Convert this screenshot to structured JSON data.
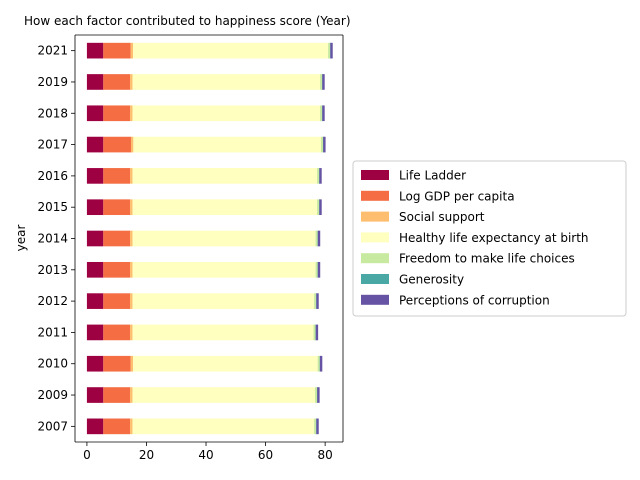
{
  "chart_data": {
    "type": "bar",
    "orientation": "horizontal",
    "stacked": true,
    "title": "How each factor contributed to happiness score (Year)",
    "xlabel": "",
    "ylabel": "year",
    "xlim": [
      -4,
      86
    ],
    "xticks": [
      0,
      20,
      40,
      60,
      80
    ],
    "categories": [
      "2007",
      "2009",
      "2010",
      "2011",
      "2012",
      "2013",
      "2014",
      "2015",
      "2016",
      "2017",
      "2018",
      "2019",
      "2021"
    ],
    "legend_position": "center-right outside",
    "grid": false,
    "series": [
      {
        "name": "Life Ladder",
        "color": "#9e0142",
        "values": [
          5.5,
          5.5,
          5.5,
          5.5,
          5.5,
          5.5,
          5.5,
          5.5,
          5.5,
          5.5,
          5.5,
          5.5,
          5.5
        ]
      },
      {
        "name": "Log GDP per capita",
        "color": "#f46d43",
        "values": [
          9.0,
          9.0,
          9.2,
          9.0,
          9.0,
          9.0,
          9.0,
          9.0,
          9.0,
          9.3,
          9.0,
          9.0,
          9.2
        ]
      },
      {
        "name": "Social support",
        "color": "#fdbf6f",
        "values": [
          0.8,
          0.8,
          0.8,
          0.8,
          0.8,
          0.8,
          0.8,
          0.8,
          0.8,
          0.8,
          0.8,
          0.8,
          0.8
        ]
      },
      {
        "name": "Healthy life expectancy at birth",
        "color": "#ffffbf",
        "values": [
          61.0,
          61.3,
          62.0,
          60.8,
          61.0,
          61.5,
          61.5,
          62.0,
          62.0,
          63.0,
          63.0,
          63.0,
          65.5
        ]
      },
      {
        "name": "Freedom to make life choices",
        "color": "#c7e9a0",
        "values": [
          0.7,
          0.7,
          0.7,
          0.7,
          0.7,
          0.7,
          0.7,
          0.7,
          0.7,
          0.7,
          0.7,
          0.7,
          0.7
        ]
      },
      {
        "name": "Generosity",
        "color": "#4aa8a4",
        "values": [
          0.05,
          0.05,
          0.05,
          0.05,
          0.05,
          0.05,
          0.05,
          0.05,
          0.05,
          0.05,
          0.05,
          0.05,
          0.05
        ]
      },
      {
        "name": "Perceptions of corruption",
        "color": "#6753a3",
        "values": [
          0.8,
          0.8,
          0.8,
          0.8,
          0.8,
          0.8,
          0.8,
          0.8,
          0.8,
          0.8,
          0.8,
          0.8,
          0.8
        ]
      }
    ]
  }
}
